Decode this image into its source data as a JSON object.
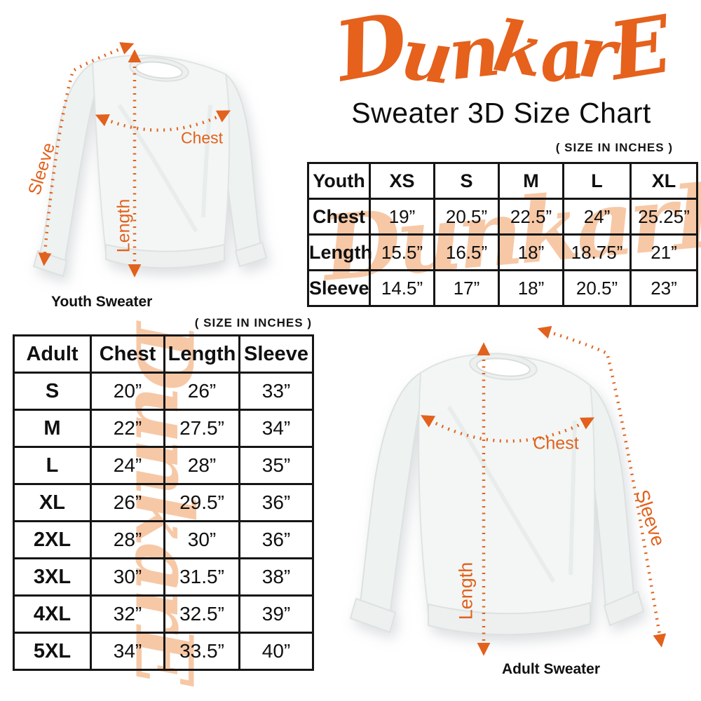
{
  "brand": {
    "logo_text": "DunkarE",
    "logo_color": "#E5611C",
    "watermark_color": "#F7C8A6"
  },
  "header": {
    "title": "Sweater 3D Size Chart"
  },
  "youth_section": {
    "units_note": "( SIZE IN INCHES )",
    "caption": "Youth Sweater",
    "measure_labels": {
      "chest": "Chest",
      "length": "Length",
      "sleeve": "Sleeve"
    }
  },
  "adult_section": {
    "units_note": "( SIZE IN INCHES )",
    "caption": "Adult Sweater",
    "measure_labels": {
      "chest": "Chest",
      "length": "Length",
      "sleeve": "Sleeve"
    }
  },
  "colors": {
    "accent_orange": "#E5611C",
    "arrow_orange": "#E2611C",
    "table_border": "#151515",
    "text_black": "#111111"
  },
  "chart_data": [
    {
      "type": "table",
      "title": "Youth Sweater Sizes (inches)",
      "columns": [
        "Youth",
        "XS",
        "S",
        "M",
        "L",
        "XL"
      ],
      "rows": [
        [
          "Chest",
          "19”",
          "20.5”",
          "22.5”",
          "24”",
          "25.25”"
        ],
        [
          "Length",
          "15.5”",
          "16.5”",
          "18”",
          "18.75”",
          "21”"
        ],
        [
          "Sleeve",
          "14.5”",
          "17”",
          "18”",
          "20.5”",
          "23”"
        ]
      ]
    },
    {
      "type": "table",
      "title": "Adult Sweater Sizes (inches)",
      "columns": [
        "Adult",
        "Chest",
        "Length",
        "Sleeve"
      ],
      "rows": [
        [
          "S",
          "20”",
          "26”",
          "33”"
        ],
        [
          "M",
          "22”",
          "27.5”",
          "34”"
        ],
        [
          "L",
          "24”",
          "28”",
          "35”"
        ],
        [
          "XL",
          "26”",
          "29.5”",
          "36”"
        ],
        [
          "2XL",
          "28”",
          "30”",
          "36”"
        ],
        [
          "3XL",
          "30”",
          "31.5”",
          "38”"
        ],
        [
          "4XL",
          "32”",
          "32.5”",
          "39”"
        ],
        [
          "5XL",
          "34”",
          "33.5”",
          "40”"
        ]
      ]
    }
  ]
}
